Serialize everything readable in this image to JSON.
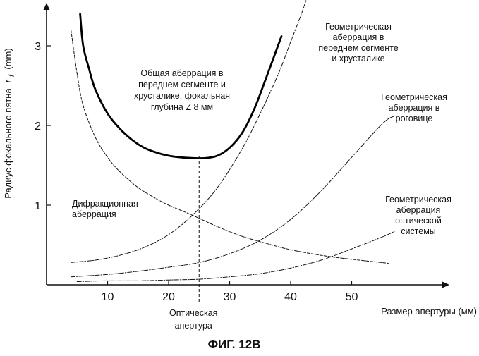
{
  "chart_data": {
    "type": "line",
    "caption": "ФИГ. 12В",
    "xlabel": "Размер апертуры (мм)",
    "ylabel": "Радиус фокального пятна",
    "ylabel_symbol": "r",
    "ylabel_subscript": "f",
    "ylabel_unit": "(mm)",
    "xlim": [
      0,
      60
    ],
    "ylim": [
      0,
      3.4
    ],
    "x_ticks": [
      10,
      20,
      30,
      40,
      50
    ],
    "y_ticks": [
      1,
      2,
      3
    ],
    "grid": false,
    "optimal_aperture_x": 25,
    "optimal_aperture_label": [
      "Оптическая",
      "апертура"
    ],
    "series": [
      {
        "name": "Общая аберрация в переднем сегменте и хрусталике, фокальная глубина Z 8 мм",
        "style": "solid-bold",
        "x": [
          5.5,
          6,
          7,
          8,
          10,
          12,
          14,
          16,
          18,
          20,
          22,
          24,
          26,
          28,
          30,
          32,
          34,
          36,
          38.5
        ],
        "y": [
          3.4,
          3.0,
          2.7,
          2.45,
          2.15,
          1.96,
          1.82,
          1.72,
          1.66,
          1.62,
          1.6,
          1.59,
          1.59,
          1.62,
          1.72,
          1.9,
          2.2,
          2.6,
          3.12
        ]
      },
      {
        "name": "Дифракционная аберрация",
        "style": "dashed",
        "x": [
          4,
          5,
          6,
          8,
          10,
          12,
          15,
          18,
          20,
          24,
          28,
          32,
          36,
          40,
          45,
          50,
          56
        ],
        "y": [
          3.2,
          2.65,
          2.25,
          1.85,
          1.6,
          1.42,
          1.22,
          1.08,
          1.0,
          0.87,
          0.73,
          0.61,
          0.52,
          0.44,
          0.37,
          0.32,
          0.27
        ]
      },
      {
        "name": "Геометрическая аберрация в переднем сегменте и хрусталике",
        "style": "dashdot",
        "x": [
          4,
          8,
          12,
          16,
          20,
          24,
          28,
          32,
          35,
          38,
          40,
          42,
          43
        ],
        "y": [
          0.28,
          0.31,
          0.37,
          0.47,
          0.63,
          0.88,
          1.22,
          1.7,
          2.15,
          2.65,
          3.05,
          3.45,
          3.7
        ]
      },
      {
        "name": "Геометрическая аберрация в роговице",
        "style": "dashdot",
        "x": [
          4,
          10,
          15,
          20,
          25,
          30,
          35,
          40,
          45,
          50,
          55,
          57
        ],
        "y": [
          0.1,
          0.13,
          0.17,
          0.22,
          0.28,
          0.39,
          0.56,
          0.82,
          1.18,
          1.6,
          2.02,
          2.12
        ]
      },
      {
        "name": "Геометрическая аберрация оптической системы",
        "style": "dashdot",
        "x": [
          5,
          10,
          15,
          20,
          25,
          30,
          35,
          40,
          45,
          50,
          55,
          57
        ],
        "y": [
          0.04,
          0.05,
          0.05,
          0.06,
          0.07,
          0.1,
          0.14,
          0.21,
          0.31,
          0.45,
          0.6,
          0.67
        ]
      }
    ],
    "annotations": [
      {
        "lines": [
          "Общая аберрация в",
          "переднем сегменте и",
          "хрусталике, фокальная",
          "глубина Z 8 мм"
        ],
        "anchor": "middle"
      },
      {
        "lines": [
          "Дифракционная",
          "аберрация"
        ],
        "anchor": "start"
      },
      {
        "lines": [
          "Геометрическая",
          "аберрация в",
          "переднем сегменте",
          "и хрусталике"
        ],
        "anchor": "middle"
      },
      {
        "lines": [
          "Геометрическая",
          "аберрация в",
          "роговице"
        ],
        "anchor": "middle"
      },
      {
        "lines": [
          "Геометрическая",
          "аберрация",
          "оптической",
          "системы"
        ],
        "anchor": "middle"
      }
    ]
  }
}
